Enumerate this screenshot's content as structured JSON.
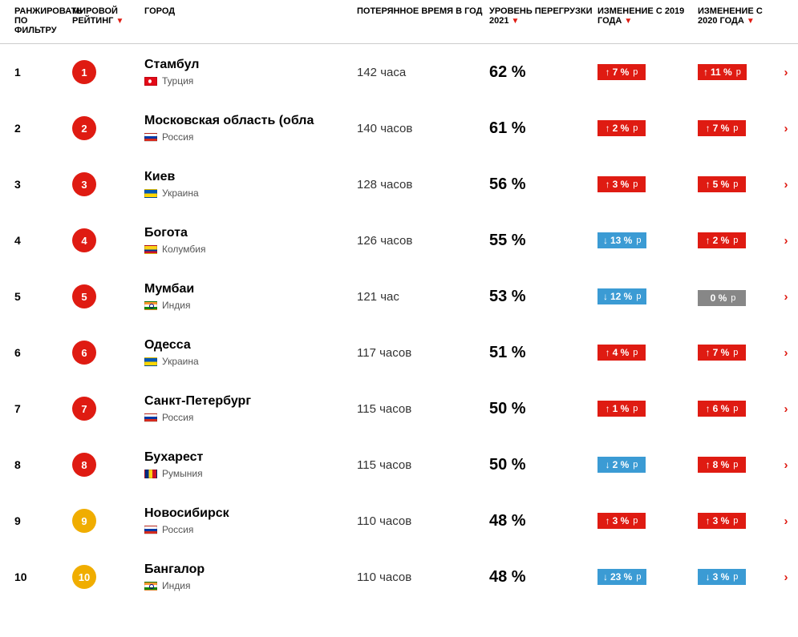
{
  "colors": {
    "rank_primary": "#df1b12",
    "rank_secondary": "#f0ad00",
    "badge_up": "#df1b12",
    "badge_down": "#3b9bd4",
    "badge_zero": "#878787",
    "chevron": "#df1b12"
  },
  "headers": {
    "filter": "РАНЖИРОВАТЬ ПО ФИЛЬТРУ",
    "world": "МИРОВОЙ РЕЙТИНГ",
    "city": "ГОРОД",
    "lost": "ПОТЕРЯННОЕ ВРЕМЯ В ГОД",
    "level": "УРОВЕНЬ ПЕРЕГРУЗКИ 2021",
    "ch19": "ИЗМЕНЕНИЕ С 2019 ГОДА",
    "ch20": "ИЗМЕНЕНИЕ С 2020 ГОДА",
    "sort_marker": "▼"
  },
  "pp_suffix": "p",
  "rows": [
    {
      "filter": 1,
      "world": 1,
      "rank_color": "#df1b12",
      "city": "Стамбул",
      "country": "Турция",
      "flag": "flag-tr",
      "lost": "142 часа",
      "level": "62 %",
      "ch19": {
        "dir": "up",
        "val": "7 %"
      },
      "ch20": {
        "dir": "up",
        "val": "11 %"
      }
    },
    {
      "filter": 2,
      "world": 2,
      "rank_color": "#df1b12",
      "city": "Московская область (обла",
      "country": "Россия",
      "flag": "flag-ru",
      "lost": "140 часов",
      "level": "61 %",
      "ch19": {
        "dir": "up",
        "val": "2 %"
      },
      "ch20": {
        "dir": "up",
        "val": "7 %"
      }
    },
    {
      "filter": 3,
      "world": 3,
      "rank_color": "#df1b12",
      "city": "Киев",
      "country": "Украина",
      "flag": "flag-ua",
      "lost": "128 часов",
      "level": "56 %",
      "ch19": {
        "dir": "up",
        "val": "3 %"
      },
      "ch20": {
        "dir": "up",
        "val": "5 %"
      }
    },
    {
      "filter": 4,
      "world": 4,
      "rank_color": "#df1b12",
      "city": "Богота",
      "country": "Колумбия",
      "flag": "flag-co",
      "lost": "126 часов",
      "level": "55 %",
      "ch19": {
        "dir": "down",
        "val": "13 %"
      },
      "ch20": {
        "dir": "up",
        "val": "2 %"
      }
    },
    {
      "filter": 5,
      "world": 5,
      "rank_color": "#df1b12",
      "city": "Мумбаи",
      "country": "Индия",
      "flag": "flag-in",
      "lost": "121 час",
      "level": "53 %",
      "ch19": {
        "dir": "down",
        "val": "12 %"
      },
      "ch20": {
        "dir": "none",
        "val": "0 %"
      }
    },
    {
      "filter": 6,
      "world": 6,
      "rank_color": "#df1b12",
      "city": "Одесса",
      "country": "Украина",
      "flag": "flag-ua",
      "lost": "117 часов",
      "level": "51 %",
      "ch19": {
        "dir": "up",
        "val": "4 %"
      },
      "ch20": {
        "dir": "up",
        "val": "7 %"
      }
    },
    {
      "filter": 7,
      "world": 7,
      "rank_color": "#df1b12",
      "city": "Санкт-Петербург",
      "country": "Россия",
      "flag": "flag-ru",
      "lost": "115 часов",
      "level": "50 %",
      "ch19": {
        "dir": "up",
        "val": "1 %"
      },
      "ch20": {
        "dir": "up",
        "val": "6 %"
      }
    },
    {
      "filter": 8,
      "world": 8,
      "rank_color": "#df1b12",
      "city": "Бухарест",
      "country": "Румыния",
      "flag": "flag-ro",
      "lost": "115 часов",
      "level": "50 %",
      "ch19": {
        "dir": "down",
        "val": "2 %"
      },
      "ch20": {
        "dir": "up",
        "val": "8 %"
      }
    },
    {
      "filter": 9,
      "world": 9,
      "rank_color": "#f0ad00",
      "city": "Новосибирск",
      "country": "Россия",
      "flag": "flag-ru",
      "lost": "110 часов",
      "level": "48 %",
      "ch19": {
        "dir": "up",
        "val": "3 %"
      },
      "ch20": {
        "dir": "up",
        "val": "3 %"
      }
    },
    {
      "filter": 10,
      "world": 10,
      "rank_color": "#f0ad00",
      "city": "Бангалор",
      "country": "Индия",
      "flag": "flag-in",
      "lost": "110 часов",
      "level": "48 %",
      "ch19": {
        "dir": "down",
        "val": "23 %"
      },
      "ch20": {
        "dir": "down",
        "val": "3 %"
      }
    }
  ]
}
